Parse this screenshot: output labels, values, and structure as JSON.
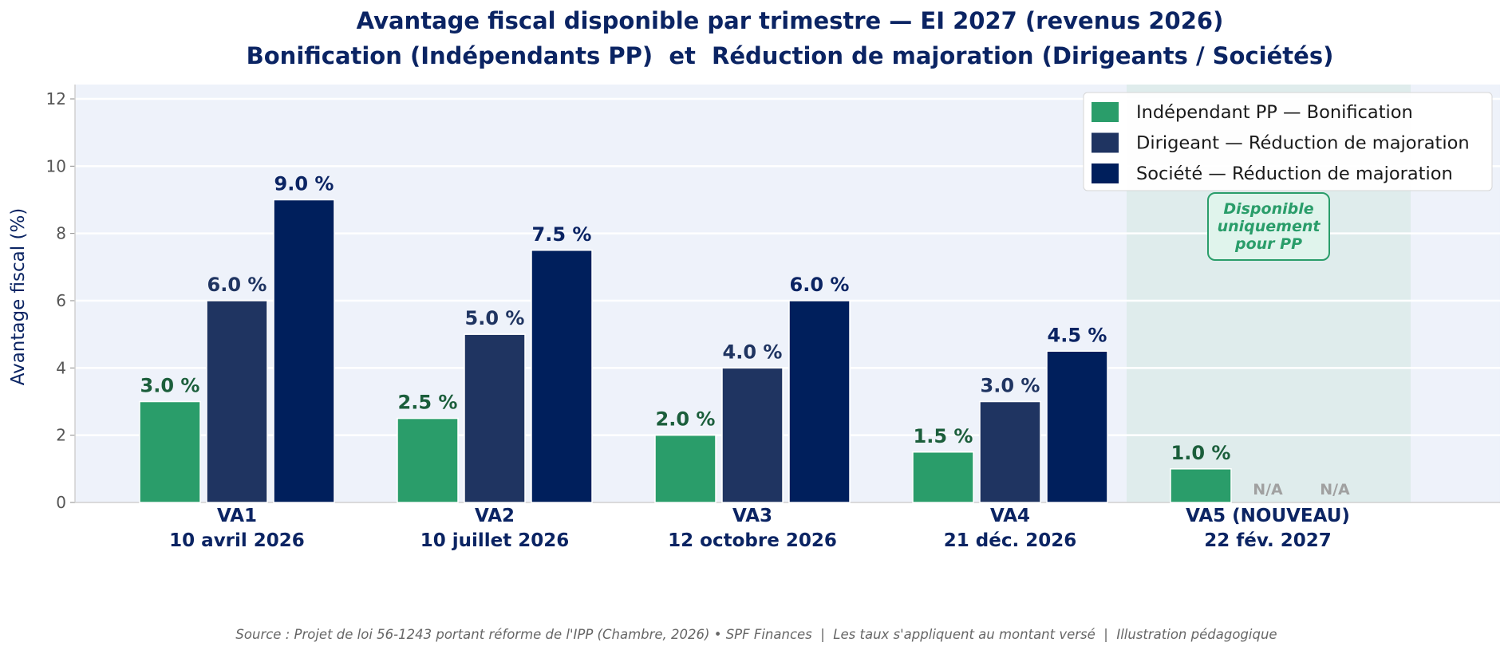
{
  "chart_data": {
    "type": "bar",
    "title": "Avantage fiscal disponible par trimestre — EI 2027 (revenus 2026)",
    "subtitle": "Bonification (Indépendants PP)  et  Réduction de majoration (Dirigeants / Sociétés)",
    "ylabel": "Avantage fiscal (%)",
    "xlabel": "",
    "ylim": [
      0,
      12.5
    ],
    "yticks": [
      0,
      2,
      4,
      6,
      8,
      10,
      12
    ],
    "grid": true,
    "legend_position": "top-right",
    "categories": [
      {
        "code": "VA1",
        "date": "10 avril 2026"
      },
      {
        "code": "VA2",
        "date": "10 juillet 2026"
      },
      {
        "code": "VA3",
        "date": "12 octobre 2026"
      },
      {
        "code": "VA4",
        "date": "21 déc. 2026"
      },
      {
        "code": "VA5 (NOUVEAU)",
        "date": "22 fév. 2027"
      }
    ],
    "series": [
      {
        "name": "Indépendant PP — Bonification",
        "color": "#2a9d6a",
        "label_color": "#1b5e3b",
        "values": [
          3.0,
          2.5,
          2.0,
          1.5,
          1.0
        ]
      },
      {
        "name": "Dirigeant — Réduction de majoration",
        "color": "#1f3461",
        "label_color": "#1f3461",
        "values": [
          6.0,
          5.0,
          4.0,
          3.0,
          null
        ]
      },
      {
        "name": "Société — Réduction de majoration",
        "color": "#001f5c",
        "label_color": "#0b2463",
        "values": [
          9.0,
          7.5,
          6.0,
          4.5,
          null
        ]
      }
    ],
    "value_suffix": " %",
    "missing_label": "N/A",
    "highlight": {
      "category_index": 4,
      "color": "#dfecec"
    },
    "annotation": {
      "lines": [
        "Disponible",
        "uniquement",
        "pour PP"
      ],
      "color": "#2a9d6a",
      "fill": "#e0f4ec"
    },
    "plot_background": "#eef2fa",
    "source": "Source : Projet de loi 56-1243 portant réforme de l'IPP (Chambre, 2026) • SPF Finances  |  Les taux s'appliquent au montant versé  |  Illustration pédagogique"
  }
}
